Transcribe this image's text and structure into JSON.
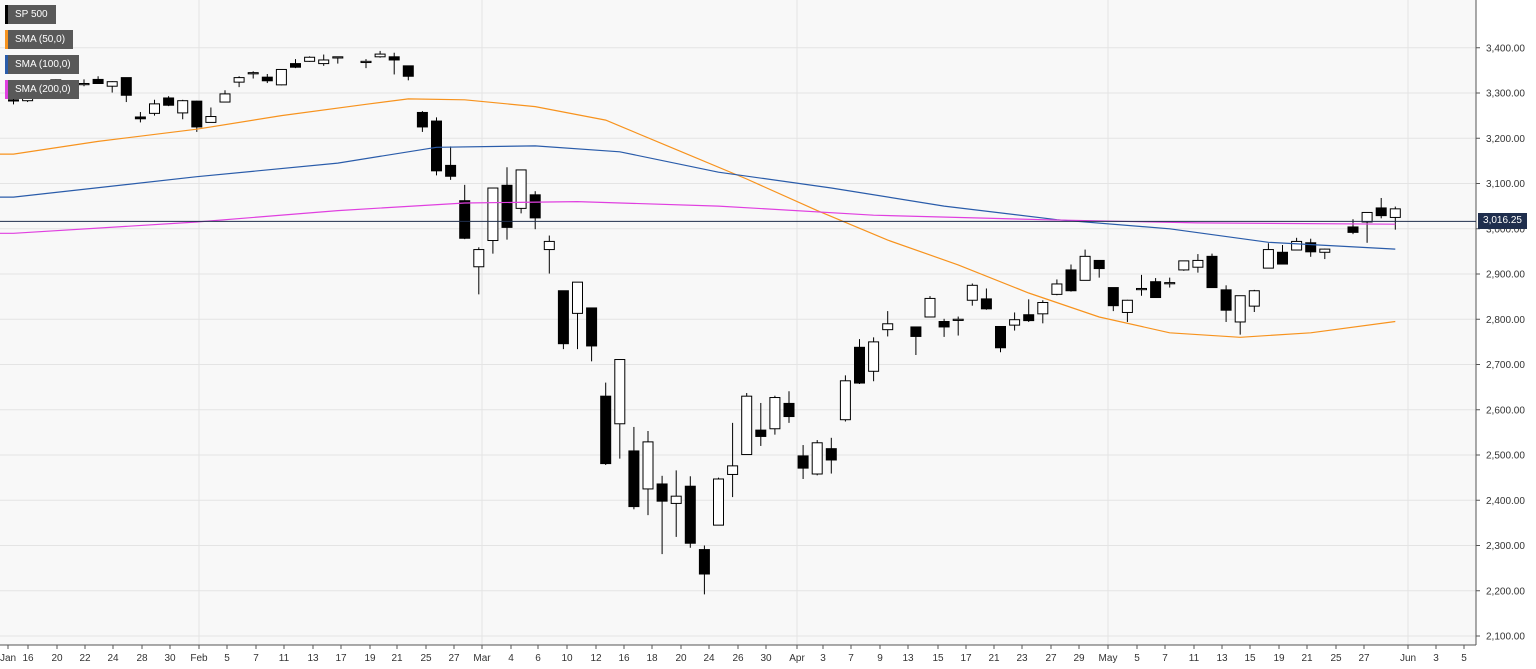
{
  "legend": [
    {
      "label": "SP 500",
      "color": "#000000"
    },
    {
      "label": "SMA (50,0)",
      "color": "#f7931e"
    },
    {
      "label": "SMA (100,0)",
      "color": "#2a5caa"
    },
    {
      "label": "SMA (200,0)",
      "color": "#e040e0"
    }
  ],
  "price_tag": "3,016.25",
  "chart_data": {
    "type": "candlestick",
    "ylim": [
      2100,
      3500
    ],
    "y_ticks": [
      2100,
      2200,
      2300,
      2400,
      2500,
      2600,
      2700,
      2800,
      2900,
      3000,
      3100,
      3200,
      3300,
      3400
    ],
    "y_tick_labels": [
      "2,100.00",
      "2,200.00",
      "2,300.00",
      "2,400.00",
      "2,500.00",
      "2,600.00",
      "2,700.00",
      "2,800.00",
      "2,900.00",
      "3,000.00",
      "3,100.00",
      "3,200.00",
      "3,300.00",
      "3,400.00"
    ],
    "x_tick_labels": [
      "Jan",
      "16",
      "20",
      "22",
      "24",
      "28",
      "30",
      "Feb",
      "5",
      "7",
      "11",
      "13",
      "17",
      "19",
      "21",
      "25",
      "27",
      "Mar",
      "4",
      "6",
      "10",
      "12",
      "16",
      "18",
      "20",
      "24",
      "26",
      "30",
      "Apr",
      "3",
      "7",
      "9",
      "13",
      "15",
      "17",
      "21",
      "23",
      "27",
      "29",
      "May",
      "5",
      "7",
      "11",
      "13",
      "15",
      "19",
      "21",
      "25",
      "27",
      "Jun",
      "3",
      "5"
    ],
    "last_price": 3016.25,
    "grid": true,
    "candles": [
      {
        "date": "2020-01-14",
        "o": 3285,
        "h": 3295,
        "l": 3275,
        "c": 3283
      },
      {
        "date": "2020-01-15",
        "o": 3283,
        "h": 3298,
        "l": 3280,
        "c": 3289
      },
      {
        "date": "2020-01-16",
        "o": 3302,
        "h": 3318,
        "l": 3298,
        "c": 3316
      },
      {
        "date": "2020-01-17",
        "o": 3323,
        "h": 3330,
        "l": 3316,
        "c": 3329
      },
      {
        "date": "2020-01-21",
        "o": 3321,
        "h": 3330,
        "l": 3315,
        "c": 3321
      },
      {
        "date": "2020-01-22",
        "o": 3330,
        "h": 3337,
        "l": 3320,
        "c": 3321
      },
      {
        "date": "2020-01-23",
        "o": 3315,
        "h": 3326,
        "l": 3301,
        "c": 3325
      },
      {
        "date": "2020-01-24",
        "o": 3334,
        "h": 3334,
        "l": 3280,
        "c": 3295
      },
      {
        "date": "2020-01-27",
        "o": 3247,
        "h": 3258,
        "l": 3235,
        "c": 3243
      },
      {
        "date": "2020-01-28",
        "o": 3255,
        "h": 3285,
        "l": 3250,
        "c": 3276
      },
      {
        "date": "2020-01-29",
        "o": 3289,
        "h": 3293,
        "l": 3271,
        "c": 3273
      },
      {
        "date": "2020-01-30",
        "o": 3256,
        "h": 3285,
        "l": 3242,
        "c": 3283
      },
      {
        "date": "2020-01-31",
        "o": 3282,
        "h": 3283,
        "l": 3214,
        "c": 3225
      },
      {
        "date": "2020-02-03",
        "o": 3235,
        "h": 3268,
        "l": 3235,
        "c": 3248
      },
      {
        "date": "2020-02-04",
        "o": 3280,
        "h": 3306,
        "l": 3280,
        "c": 3298
      },
      {
        "date": "2020-02-05",
        "o": 3324,
        "h": 3337,
        "l": 3313,
        "c": 3334
      },
      {
        "date": "2020-02-06",
        "o": 3344,
        "h": 3348,
        "l": 3332,
        "c": 3345
      },
      {
        "date": "2020-02-07",
        "o": 3335,
        "h": 3342,
        "l": 3322,
        "c": 3327
      },
      {
        "date": "2020-02-10",
        "o": 3318,
        "h": 3352,
        "l": 3317,
        "c": 3352
      },
      {
        "date": "2020-02-11",
        "o": 3365,
        "h": 3375,
        "l": 3355,
        "c": 3357
      },
      {
        "date": "2020-02-12",
        "o": 3370,
        "h": 3381,
        "l": 3369,
        "c": 3379
      },
      {
        "date": "2020-02-13",
        "o": 3365,
        "h": 3385,
        "l": 3360,
        "c": 3373
      },
      {
        "date": "2020-02-14",
        "o": 3378,
        "h": 3380,
        "l": 3365,
        "c": 3380
      },
      {
        "date": "2020-02-18",
        "o": 3370,
        "h": 3375,
        "l": 3355,
        "c": 3370
      },
      {
        "date": "2020-02-19",
        "o": 3380,
        "h": 3393,
        "l": 3378,
        "c": 3386
      },
      {
        "date": "2020-02-20",
        "o": 3380,
        "h": 3389,
        "l": 3341,
        "c": 3373
      },
      {
        "date": "2020-02-21",
        "o": 3360,
        "h": 3360,
        "l": 3328,
        "c": 3337
      },
      {
        "date": "2020-02-24",
        "o": 3257,
        "h": 3260,
        "l": 3214,
        "c": 3225
      },
      {
        "date": "2020-02-25",
        "o": 3238,
        "h": 3246,
        "l": 3118,
        "c": 3128
      },
      {
        "date": "2020-02-26",
        "o": 3140,
        "h": 3182,
        "l": 3108,
        "c": 3116
      },
      {
        "date": "2020-02-27",
        "o": 3062,
        "h": 3097,
        "l": 2977,
        "c": 2979
      },
      {
        "date": "2020-02-28",
        "o": 2916,
        "h": 2959,
        "l": 2855,
        "c": 2954
      },
      {
        "date": "2020-03-02",
        "o": 2974,
        "h": 3090,
        "l": 2945,
        "c": 3090
      },
      {
        "date": "2020-03-03",
        "o": 3096,
        "h": 3136,
        "l": 2976,
        "c": 3003
      },
      {
        "date": "2020-03-04",
        "o": 3045,
        "h": 3130,
        "l": 3034,
        "c": 3130
      },
      {
        "date": "2020-03-05",
        "o": 3075,
        "h": 3083,
        "l": 2999,
        "c": 3024
      },
      {
        "date": "2020-03-06",
        "o": 2954,
        "h": 2985,
        "l": 2901,
        "c": 2972
      },
      {
        "date": "2020-03-09",
        "o": 2863,
        "h": 2863,
        "l": 2734,
        "c": 2746
      },
      {
        "date": "2020-03-10",
        "o": 2813,
        "h": 2882,
        "l": 2734,
        "c": 2882
      },
      {
        "date": "2020-03-11",
        "o": 2825,
        "h": 2825,
        "l": 2707,
        "c": 2741
      },
      {
        "date": "2020-03-12",
        "o": 2630,
        "h": 2660,
        "l": 2478,
        "c": 2481
      },
      {
        "date": "2020-03-13",
        "o": 2569,
        "h": 2711,
        "l": 2492,
        "c": 2711
      },
      {
        "date": "2020-03-16",
        "o": 2509,
        "h": 2562,
        "l": 2380,
        "c": 2386
      },
      {
        "date": "2020-03-17",
        "o": 2425,
        "h": 2553,
        "l": 2367,
        "c": 2529
      },
      {
        "date": "2020-03-18",
        "o": 2436,
        "h": 2454,
        "l": 2281,
        "c": 2398
      },
      {
        "date": "2020-03-19",
        "o": 2393,
        "h": 2466,
        "l": 2319,
        "c": 2409
      },
      {
        "date": "2020-03-20",
        "o": 2431,
        "h": 2453,
        "l": 2295,
        "c": 2305
      },
      {
        "date": "2020-03-23",
        "o": 2291,
        "h": 2300,
        "l": 2192,
        "c": 2237
      },
      {
        "date": "2020-03-24",
        "o": 2345,
        "h": 2450,
        "l": 2345,
        "c": 2447
      },
      {
        "date": "2020-03-25",
        "o": 2457,
        "h": 2571,
        "l": 2407,
        "c": 2476
      },
      {
        "date": "2020-03-26",
        "o": 2501,
        "h": 2637,
        "l": 2500,
        "c": 2630
      },
      {
        "date": "2020-03-27",
        "o": 2555,
        "h": 2615,
        "l": 2520,
        "c": 2541
      },
      {
        "date": "2020-03-30",
        "o": 2558,
        "h": 2631,
        "l": 2545,
        "c": 2627
      },
      {
        "date": "2020-03-31",
        "o": 2614,
        "h": 2641,
        "l": 2571,
        "c": 2585
      },
      {
        "date": "2020-04-01",
        "o": 2498,
        "h": 2522,
        "l": 2447,
        "c": 2471
      },
      {
        "date": "2020-04-02",
        "o": 2458,
        "h": 2533,
        "l": 2455,
        "c": 2527
      },
      {
        "date": "2020-04-03",
        "o": 2514,
        "h": 2538,
        "l": 2459,
        "c": 2489
      },
      {
        "date": "2020-04-06",
        "o": 2578,
        "h": 2676,
        "l": 2574,
        "c": 2664
      },
      {
        "date": "2020-04-07",
        "o": 2738,
        "h": 2756,
        "l": 2657,
        "c": 2659
      },
      {
        "date": "2020-04-08",
        "o": 2685,
        "h": 2760,
        "l": 2663,
        "c": 2750
      },
      {
        "date": "2020-04-09",
        "o": 2777,
        "h": 2818,
        "l": 2762,
        "c": 2790
      },
      {
        "date": "2020-04-13",
        "o": 2783,
        "h": 2783,
        "l": 2721,
        "c": 2762
      },
      {
        "date": "2020-04-14",
        "o": 2805,
        "h": 2851,
        "l": 2805,
        "c": 2846
      },
      {
        "date": "2020-04-15",
        "o": 2795,
        "h": 2801,
        "l": 2761,
        "c": 2783
      },
      {
        "date": "2020-04-16",
        "o": 2799,
        "h": 2806,
        "l": 2764,
        "c": 2800
      },
      {
        "date": "2020-04-17",
        "o": 2842,
        "h": 2879,
        "l": 2830,
        "c": 2875
      },
      {
        "date": "2020-04-20",
        "o": 2845,
        "h": 2868,
        "l": 2821,
        "c": 2823
      },
      {
        "date": "2020-04-21",
        "o": 2784,
        "h": 2785,
        "l": 2727,
        "c": 2737
      },
      {
        "date": "2020-04-22",
        "o": 2787,
        "h": 2815,
        "l": 2775,
        "c": 2799
      },
      {
        "date": "2020-04-23",
        "o": 2810,
        "h": 2844,
        "l": 2794,
        "c": 2797
      },
      {
        "date": "2020-04-24",
        "o": 2812,
        "h": 2842,
        "l": 2791,
        "c": 2837
      },
      {
        "date": "2020-04-27",
        "o": 2855,
        "h": 2888,
        "l": 2853,
        "c": 2878
      },
      {
        "date": "2020-04-28",
        "o": 2909,
        "h": 2921,
        "l": 2861,
        "c": 2863
      },
      {
        "date": "2020-04-29",
        "o": 2886,
        "h": 2954,
        "l": 2886,
        "c": 2939
      },
      {
        "date": "2020-04-30",
        "o": 2930,
        "h": 2930,
        "l": 2892,
        "c": 2912
      },
      {
        "date": "2020-05-01",
        "o": 2870,
        "h": 2870,
        "l": 2818,
        "c": 2830
      },
      {
        "date": "2020-05-04",
        "o": 2815,
        "h": 2843,
        "l": 2794,
        "c": 2842
      },
      {
        "date": "2020-05-05",
        "o": 2868,
        "h": 2898,
        "l": 2852,
        "c": 2868
      },
      {
        "date": "2020-05-06",
        "o": 2883,
        "h": 2891,
        "l": 2847,
        "c": 2848
      },
      {
        "date": "2020-05-07",
        "o": 2879,
        "h": 2892,
        "l": 2870,
        "c": 2881
      },
      {
        "date": "2020-05-08",
        "o": 2909,
        "h": 2929,
        "l": 2907,
        "c": 2929
      },
      {
        "date": "2020-05-11",
        "o": 2915,
        "h": 2944,
        "l": 2903,
        "c": 2930
      },
      {
        "date": "2020-05-12",
        "o": 2939,
        "h": 2945,
        "l": 2869,
        "c": 2870
      },
      {
        "date": "2020-05-13",
        "o": 2865,
        "h": 2875,
        "l": 2794,
        "c": 2820
      },
      {
        "date": "2020-05-14",
        "o": 2794,
        "h": 2852,
        "l": 2766,
        "c": 2852
      },
      {
        "date": "2020-05-15",
        "o": 2829,
        "h": 2865,
        "l": 2816,
        "c": 2863
      },
      {
        "date": "2020-05-18",
        "o": 2913,
        "h": 2968,
        "l": 2913,
        "c": 2954
      },
      {
        "date": "2020-05-19",
        "o": 2948,
        "h": 2964,
        "l": 2922,
        "c": 2922
      },
      {
        "date": "2020-05-20",
        "o": 2953,
        "h": 2980,
        "l": 2953,
        "c": 2972
      },
      {
        "date": "2020-05-21",
        "o": 2969,
        "h": 2978,
        "l": 2938,
        "c": 2949
      },
      {
        "date": "2020-05-22",
        "o": 2948,
        "h": 2956,
        "l": 2933,
        "c": 2955
      },
      {
        "date": "2020-05-26",
        "o": 3004,
        "h": 3021,
        "l": 2988,
        "c": 2992
      },
      {
        "date": "2020-05-27",
        "o": 3015,
        "h": 3036,
        "l": 2969,
        "c": 3036
      },
      {
        "date": "2020-05-28",
        "o": 3046,
        "h": 3068,
        "l": 3023,
        "c": 3029
      },
      {
        "date": "2020-05-29",
        "o": 3025,
        "h": 3049,
        "l": 2998,
        "c": 3044
      }
    ],
    "series": [
      {
        "name": "SMA (50,0)",
        "color": "#f7931e",
        "values": [
          {
            "date": "2020-01-14",
            "v": 3165
          },
          {
            "date": "2020-01-22",
            "v": 3193
          },
          {
            "date": "2020-01-31",
            "v": 3220
          },
          {
            "date": "2020-02-10",
            "v": 3250
          },
          {
            "date": "2020-02-18",
            "v": 3275
          },
          {
            "date": "2020-02-21",
            "v": 3287
          },
          {
            "date": "2020-02-27",
            "v": 3285
          },
          {
            "date": "2020-03-05",
            "v": 3270
          },
          {
            "date": "2020-03-12",
            "v": 3240
          },
          {
            "date": "2020-03-19",
            "v": 3175
          },
          {
            "date": "2020-03-26",
            "v": 3110
          },
          {
            "date": "2020-04-02",
            "v": 3040
          },
          {
            "date": "2020-04-09",
            "v": 2975
          },
          {
            "date": "2020-04-16",
            "v": 2920
          },
          {
            "date": "2020-04-23",
            "v": 2858
          },
          {
            "date": "2020-04-30",
            "v": 2805
          },
          {
            "date": "2020-05-07",
            "v": 2770
          },
          {
            "date": "2020-05-14",
            "v": 2760
          },
          {
            "date": "2020-05-21",
            "v": 2770
          },
          {
            "date": "2020-05-29",
            "v": 2795
          }
        ]
      },
      {
        "name": "SMA (100,0)",
        "color": "#2a5caa",
        "values": [
          {
            "date": "2020-01-14",
            "v": 3070
          },
          {
            "date": "2020-01-31",
            "v": 3115
          },
          {
            "date": "2020-02-14",
            "v": 3145
          },
          {
            "date": "2020-02-25",
            "v": 3180
          },
          {
            "date": "2020-03-05",
            "v": 3183
          },
          {
            "date": "2020-03-13",
            "v": 3170
          },
          {
            "date": "2020-03-24",
            "v": 3125
          },
          {
            "date": "2020-04-03",
            "v": 3090
          },
          {
            "date": "2020-04-15",
            "v": 3050
          },
          {
            "date": "2020-04-27",
            "v": 3020
          },
          {
            "date": "2020-05-07",
            "v": 3000
          },
          {
            "date": "2020-05-18",
            "v": 2970
          },
          {
            "date": "2020-05-29",
            "v": 2955
          }
        ]
      },
      {
        "name": "SMA (200,0)",
        "color": "#e040e0",
        "values": [
          {
            "date": "2020-01-14",
            "v": 2990
          },
          {
            "date": "2020-01-31",
            "v": 3015
          },
          {
            "date": "2020-02-14",
            "v": 3040
          },
          {
            "date": "2020-02-27",
            "v": 3057
          },
          {
            "date": "2020-03-10",
            "v": 3060
          },
          {
            "date": "2020-03-24",
            "v": 3050
          },
          {
            "date": "2020-04-08",
            "v": 3030
          },
          {
            "date": "2020-04-24",
            "v": 3020
          },
          {
            "date": "2020-05-11",
            "v": 3013
          },
          {
            "date": "2020-05-29",
            "v": 3010
          }
        ]
      }
    ]
  }
}
